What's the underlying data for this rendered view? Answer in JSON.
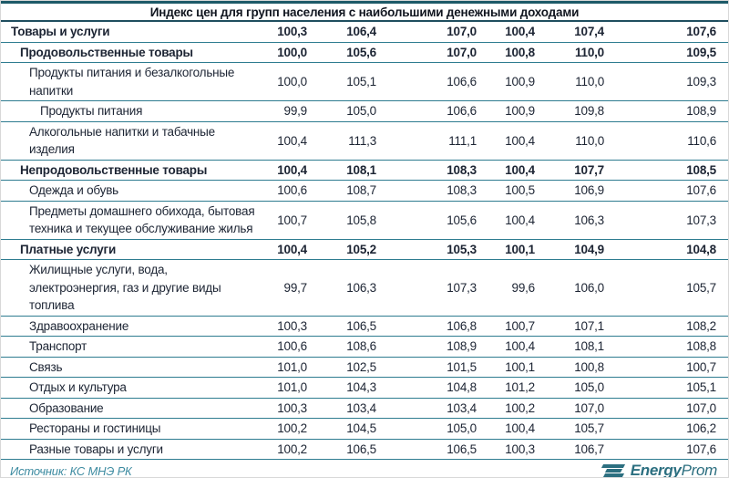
{
  "colors": {
    "thick_border": "#1d5a68",
    "row_line": "#2e7c90",
    "title_underline": "#1f4e5f",
    "text": "#1c2433",
    "source_text": "#3d8ba1",
    "logo": "#2c6f80"
  },
  "footer": {
    "source": "Источник: КС МНЭ РК",
    "logo_bold": "Energy",
    "logo_light": "Prom"
  },
  "chart_data": {
    "type": "table",
    "title": "Индекс цен для групп населения с наибольшими денежными доходами",
    "value_columns": 6,
    "rows": [
      {
        "label": "Товары и услуги",
        "bold": true,
        "indent": 0,
        "values": [
          "100,3",
          "106,4",
          "107,0",
          "100,4",
          "107,4",
          "107,6"
        ]
      },
      {
        "label": "Продовольственные товары",
        "bold": true,
        "indent": 1,
        "values": [
          "100,0",
          "105,6",
          "107,0",
          "100,8",
          "110,0",
          "109,5"
        ]
      },
      {
        "label": "Продукты питания и безалкогольные напитки",
        "bold": false,
        "indent": 2,
        "values": [
          "100,0",
          "105,1",
          "106,6",
          "100,9",
          "110,0",
          "109,3"
        ]
      },
      {
        "label": "Продукты питания",
        "bold": false,
        "indent": 3,
        "values": [
          "99,9",
          "105,0",
          "106,6",
          "100,9",
          "109,8",
          "108,9"
        ]
      },
      {
        "label": "Алкогольные напитки и табачные изделия",
        "bold": false,
        "indent": 2,
        "values": [
          "100,4",
          "111,3",
          "111,1",
          "100,4",
          "110,0",
          "110,6"
        ]
      },
      {
        "label": "Непродовольственные товары",
        "bold": true,
        "indent": 1,
        "values": [
          "100,4",
          "108,1",
          "108,3",
          "100,4",
          "107,7",
          "108,5"
        ]
      },
      {
        "label": "Одежда и обувь",
        "bold": false,
        "indent": 2,
        "values": [
          "100,6",
          "108,7",
          "108,3",
          "100,5",
          "106,9",
          "107,6"
        ]
      },
      {
        "label": "Предметы домашнего обихода, бытовая техника и текущее обслуживание жилья",
        "bold": false,
        "indent": 2,
        "values": [
          "100,7",
          "105,8",
          "105,6",
          "100,4",
          "106,3",
          "107,3"
        ]
      },
      {
        "label": "Платные услуги",
        "bold": true,
        "indent": 1,
        "values": [
          "100,4",
          "105,2",
          "105,3",
          "100,1",
          "104,9",
          "104,8"
        ]
      },
      {
        "label": "Жилищные услуги, вода, электроэнергия, газ и другие виды топлива",
        "bold": false,
        "indent": 2,
        "values": [
          "99,7",
          "106,3",
          "107,3",
          "99,6",
          "106,0",
          "105,7"
        ]
      },
      {
        "label": "Здравоохранение",
        "bold": false,
        "indent": 2,
        "values": [
          "100,3",
          "106,5",
          "106,8",
          "100,7",
          "107,1",
          "108,2"
        ]
      },
      {
        "label": "Транспорт",
        "bold": false,
        "indent": 2,
        "values": [
          "100,6",
          "108,6",
          "108,9",
          "100,4",
          "108,1",
          "108,8"
        ]
      },
      {
        "label": "Связь",
        "bold": false,
        "indent": 2,
        "values": [
          "101,0",
          "102,5",
          "101,5",
          "100,1",
          "100,8",
          "100,7"
        ]
      },
      {
        "label": "Отдых и культура",
        "bold": false,
        "indent": 2,
        "values": [
          "101,0",
          "104,3",
          "104,8",
          "101,2",
          "105,0",
          "105,1"
        ]
      },
      {
        "label": "Образование",
        "bold": false,
        "indent": 2,
        "values": [
          "100,3",
          "103,4",
          "103,4",
          "100,2",
          "107,0",
          "107,0"
        ]
      },
      {
        "label": "Рестораны и гостиницы",
        "bold": false,
        "indent": 2,
        "values": [
          "100,2",
          "104,5",
          "105,0",
          "100,4",
          "105,7",
          "106,2"
        ]
      },
      {
        "label": "Разные товары и услуги",
        "bold": false,
        "indent": 2,
        "values": [
          "100,2",
          "106,5",
          "106,5",
          "100,3",
          "106,7",
          "107,6"
        ]
      }
    ]
  }
}
